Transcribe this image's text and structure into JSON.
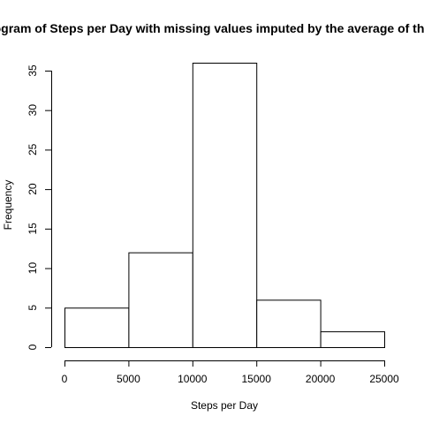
{
  "chart_data": {
    "type": "bar",
    "title": "Histogram of Steps per Day with missing values imputed by the average of the interval",
    "xlabel": "Steps per Day",
    "ylabel": "Frequency",
    "bins": [
      {
        "from": 0,
        "to": 5000,
        "count": 5
      },
      {
        "from": 5000,
        "to": 10000,
        "count": 12
      },
      {
        "from": 10000,
        "to": 15000,
        "count": 36
      },
      {
        "from": 15000,
        "to": 20000,
        "count": 6
      },
      {
        "from": 20000,
        "to": 25000,
        "count": 2
      }
    ],
    "xticks": [
      0,
      5000,
      10000,
      15000,
      20000,
      25000
    ],
    "yticks": [
      0,
      5,
      10,
      15,
      20,
      25,
      30,
      35
    ],
    "xlim": [
      0,
      25000
    ],
    "ylim": [
      0,
      36
    ],
    "grid": false,
    "bar_fill": "#ffffff",
    "bar_stroke": "#000000"
  }
}
